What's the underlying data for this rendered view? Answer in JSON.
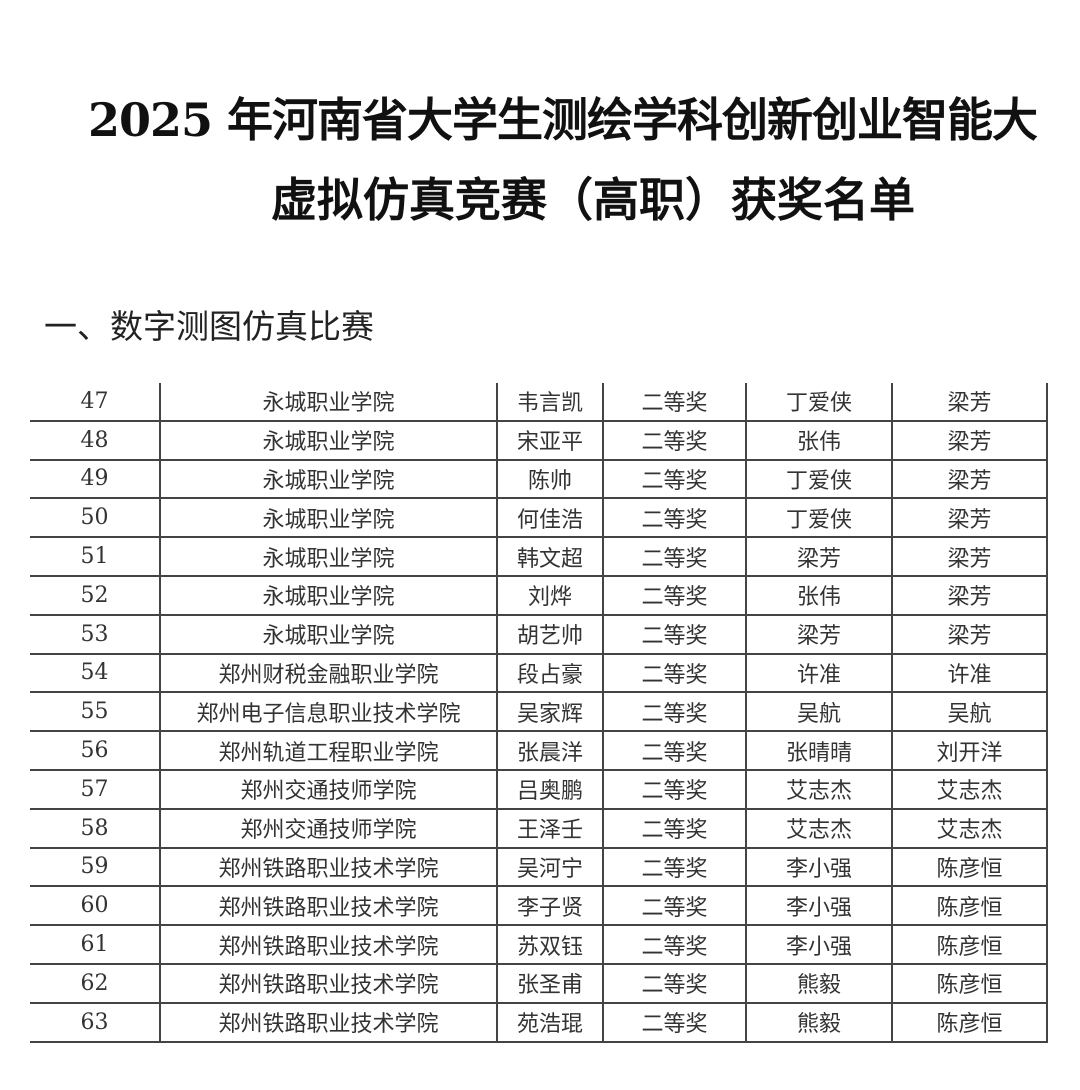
{
  "header": {
    "title_line1": "2025 年河南省大学生测绘学科创新创业智能大",
    "title_line2": "虚拟仿真竞赛（高职）获奖名单"
  },
  "section_title": "一、数字测图仿真比赛",
  "table": {
    "rows": [
      [
        "47",
        "永城职业学院",
        "韦言凯",
        "二等奖",
        "丁爱侠",
        "梁芳"
      ],
      [
        "48",
        "永城职业学院",
        "宋亚平",
        "二等奖",
        "张伟",
        "梁芳"
      ],
      [
        "49",
        "永城职业学院",
        "陈帅",
        "二等奖",
        "丁爱侠",
        "梁芳"
      ],
      [
        "50",
        "永城职业学院",
        "何佳浩",
        "二等奖",
        "丁爱侠",
        "梁芳"
      ],
      [
        "51",
        "永城职业学院",
        "韩文超",
        "二等奖",
        "梁芳",
        "梁芳"
      ],
      [
        "52",
        "永城职业学院",
        "刘烨",
        "二等奖",
        "张伟",
        "梁芳"
      ],
      [
        "53",
        "永城职业学院",
        "胡艺帅",
        "二等奖",
        "梁芳",
        "梁芳"
      ],
      [
        "54",
        "郑州财税金融职业学院",
        "段占豪",
        "二等奖",
        "许准",
        "许准"
      ],
      [
        "55",
        "郑州电子信息职业技术学院",
        "吴家辉",
        "二等奖",
        "吴航",
        "吴航"
      ],
      [
        "56",
        "郑州轨道工程职业学院",
        "张晨洋",
        "二等奖",
        "张晴晴",
        "刘开洋"
      ],
      [
        "57",
        "郑州交通技师学院",
        "吕奥鹏",
        "二等奖",
        "艾志杰",
        "艾志杰"
      ],
      [
        "58",
        "郑州交通技师学院",
        "王泽壬",
        "二等奖",
        "艾志杰",
        "艾志杰"
      ],
      [
        "59",
        "郑州铁路职业技术学院",
        "吴河宁",
        "二等奖",
        "李小强",
        "陈彦恒"
      ],
      [
        "60",
        "郑州铁路职业技术学院",
        "李子贤",
        "二等奖",
        "李小强",
        "陈彦恒"
      ],
      [
        "61",
        "郑州铁路职业技术学院",
        "苏双钰",
        "二等奖",
        "李小强",
        "陈彦恒"
      ],
      [
        "62",
        "郑州铁路职业技术学院",
        "张圣甫",
        "二等奖",
        "熊毅",
        "陈彦恒"
      ],
      [
        "63",
        "郑州铁路职业技术学院",
        "苑浩琨",
        "二等奖",
        "熊毅",
        "陈彦恒"
      ]
    ]
  }
}
